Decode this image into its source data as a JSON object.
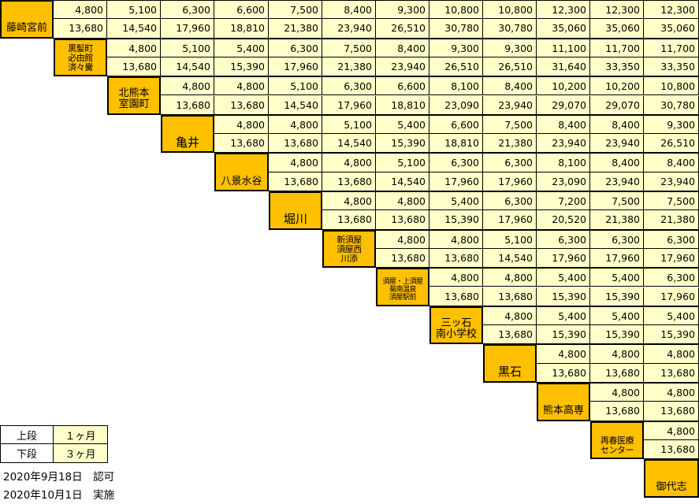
{
  "stations": [
    {
      "id": "fujisakigu",
      "label": "藤崎宮前"
    },
    {
      "id": "kurokami",
      "label": "黒髪町\n必由館\n済々黌"
    },
    {
      "id": "kitakumamoto",
      "label": "北熊本\n室園町"
    },
    {
      "id": "kamei",
      "label": "亀井"
    },
    {
      "id": "yakata",
      "label": "八景水谷"
    },
    {
      "id": "horikawa",
      "label": "堀川"
    },
    {
      "id": "shinsuya",
      "label": "新須屋\n須屋西\n川添"
    },
    {
      "id": "suya",
      "label": "須屋・上須屋\n菊南温泉\n須屋駅前"
    },
    {
      "id": "mitsuishi",
      "label": "三ッ石\n南小学校"
    },
    {
      "id": "kuroishi",
      "label": "黒石"
    },
    {
      "id": "kosen",
      "label": "熊本高専"
    },
    {
      "id": "saishun",
      "label": "再春医療\nセンター"
    },
    {
      "id": "miyoshi",
      "label": "御代志"
    }
  ],
  "fares": [
    {
      "one_month": [
        "4,800",
        "5,100",
        "6,300",
        "6,600",
        "7,500",
        "8,400",
        "9,300",
        "10,800",
        "10,800",
        "12,300",
        "12,300",
        "12,300"
      ],
      "three_months": [
        "13,680",
        "14,540",
        "17,960",
        "18,810",
        "21,380",
        "23,940",
        "26,510",
        "30,780",
        "30,780",
        "35,060",
        "35,060",
        "35,060"
      ]
    },
    {
      "one_month": [
        "4,800",
        "5,100",
        "5,400",
        "6,300",
        "7,500",
        "8,400",
        "9,300",
        "9,300",
        "11,100",
        "11,700",
        "11,700"
      ],
      "three_months": [
        "13,680",
        "14,540",
        "15,390",
        "17,960",
        "21,380",
        "23,940",
        "26,510",
        "26,510",
        "31,640",
        "33,350",
        "33,350"
      ]
    },
    {
      "one_month": [
        "4,800",
        "4,800",
        "5,100",
        "6,300",
        "6,600",
        "8,100",
        "8,400",
        "10,200",
        "10,200",
        "10,800"
      ],
      "three_months": [
        "13,680",
        "13,680",
        "14,540",
        "17,960",
        "18,810",
        "23,090",
        "23,940",
        "29,070",
        "29,070",
        "30,780"
      ]
    },
    {
      "one_month": [
        "4,800",
        "4,800",
        "5,100",
        "5,400",
        "6,600",
        "7,500",
        "8,400",
        "8,400",
        "9,300"
      ],
      "three_months": [
        "13,680",
        "13,680",
        "14,540",
        "15,390",
        "18,810",
        "21,380",
        "23,940",
        "23,940",
        "26,510"
      ]
    },
    {
      "one_month": [
        "4,800",
        "4,800",
        "5,100",
        "6,300",
        "6,300",
        "8,100",
        "8,400",
        "8,400"
      ],
      "three_months": [
        "13,680",
        "13,680",
        "14,540",
        "17,960",
        "17,960",
        "23,090",
        "23,940",
        "23,940"
      ]
    },
    {
      "one_month": [
        "4,800",
        "4,800",
        "5,400",
        "6,300",
        "7,200",
        "7,500",
        "7,500"
      ],
      "three_months": [
        "13,680",
        "13,680",
        "15,390",
        "17,960",
        "20,520",
        "21,380",
        "21,380"
      ]
    },
    {
      "one_month": [
        "4,800",
        "4,800",
        "5,100",
        "6,300",
        "6,300",
        "6,300"
      ],
      "three_months": [
        "13,680",
        "13,680",
        "14,540",
        "17,960",
        "17,960",
        "17,960"
      ]
    },
    {
      "one_month": [
        "4,800",
        "4,800",
        "5,400",
        "5,400",
        "6,300"
      ],
      "three_months": [
        "13,680",
        "13,680",
        "15,390",
        "15,390",
        "17,960"
      ]
    },
    {
      "one_month": [
        "4,800",
        "5,400",
        "5,400",
        "5,400"
      ],
      "three_months": [
        "13,680",
        "15,390",
        "15,390",
        "15,390"
      ]
    },
    {
      "one_month": [
        "4,800",
        "4,800",
        "4,800"
      ],
      "three_months": [
        "13,680",
        "13,680",
        "13,680"
      ]
    },
    {
      "one_month": [
        "4,800",
        "4,800"
      ],
      "three_months": [
        "13,680",
        "13,680"
      ]
    },
    {
      "one_month": [
        "4,800"
      ],
      "three_months": [
        "13,680"
      ]
    }
  ],
  "legend": {
    "upper_label": "上段",
    "upper_value": "１ヶ月",
    "lower_label": "下段",
    "lower_value": "３ヶ月"
  },
  "notes": {
    "approved": "2020年9月18日　認可",
    "effective": "2020年10月1日　実施"
  },
  "colors": {
    "station_bg": "#ffc000",
    "fare_bg": "#ffffc9",
    "border": "#000000"
  }
}
